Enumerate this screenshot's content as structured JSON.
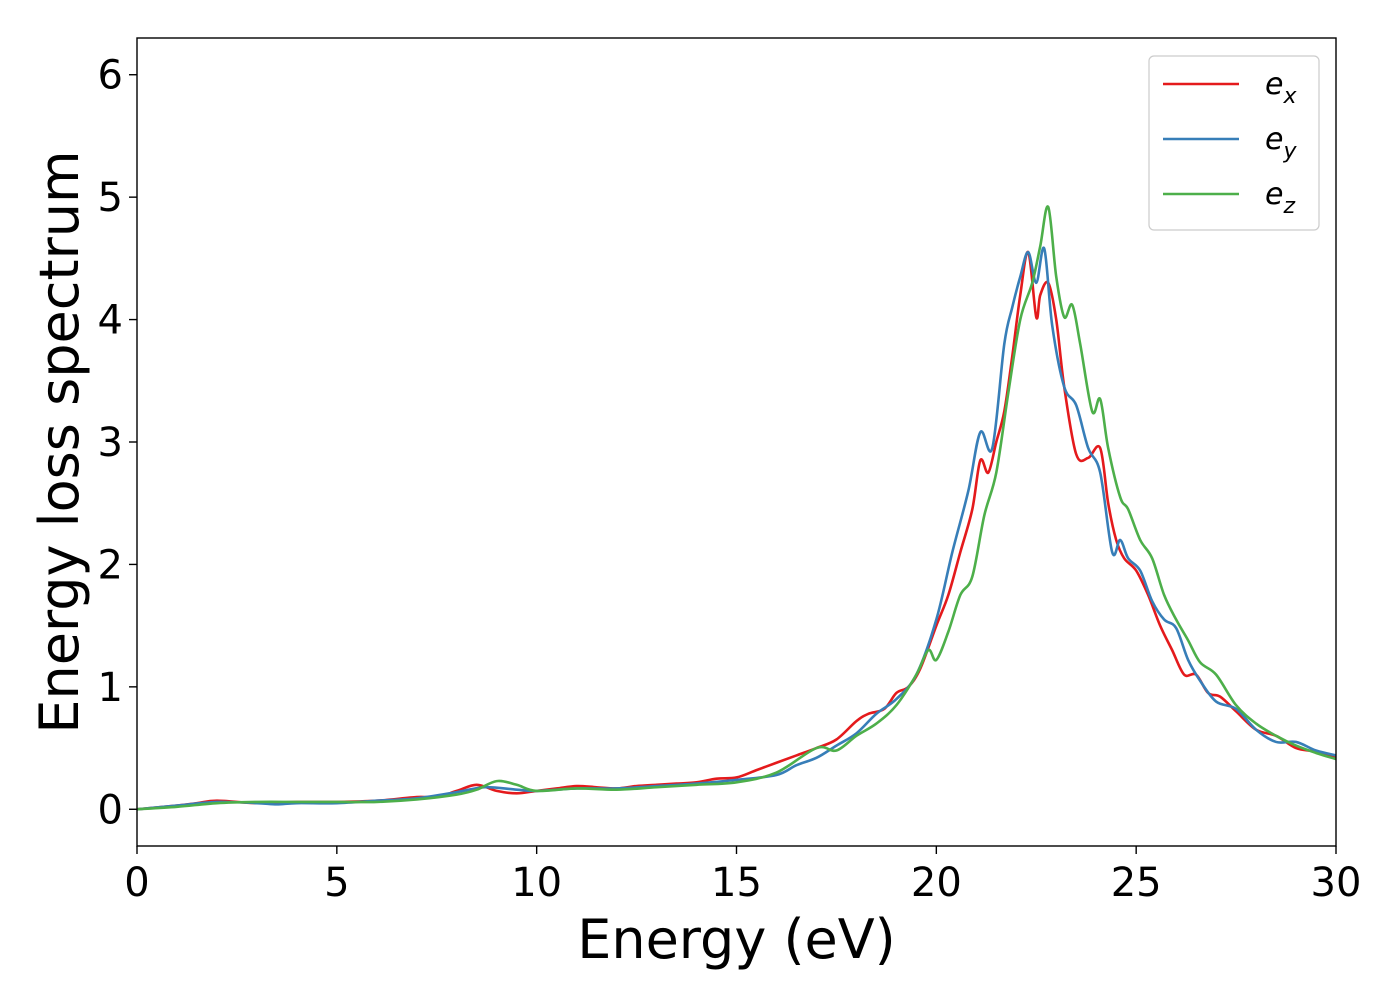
{
  "chart_data": {
    "type": "line",
    "title": "",
    "xlabel": "Energy (eV)",
    "ylabel": "Energy loss spectrum",
    "xlim": [
      0,
      30
    ],
    "ylim": [
      -0.3,
      6.3
    ],
    "xticks": [
      0,
      5,
      10,
      15,
      20,
      25,
      30
    ],
    "xtick_labels": [
      "0",
      "5",
      "10",
      "15",
      "20",
      "25",
      "30"
    ],
    "yticks": [
      0,
      1,
      2,
      3,
      4,
      5,
      6
    ],
    "ytick_labels": [
      "0",
      "1",
      "2",
      "3",
      "4",
      "5",
      "6"
    ],
    "grid": false,
    "legend_position": "top-right",
    "series": [
      {
        "name": "e_x",
        "legend_base": "e",
        "legend_sub": "x",
        "color": "#e41a1c",
        "x": [
          0,
          1,
          1.5,
          2,
          3,
          4,
          5,
          6,
          7,
          7.5,
          8,
          8.5,
          9,
          9.5,
          10,
          10.5,
          11,
          11.5,
          12,
          12.5,
          13,
          13.5,
          14,
          14.5,
          15,
          15.5,
          16,
          16.5,
          17,
          17.5,
          18,
          18.3,
          18.7,
          19,
          19.3,
          19.6,
          20,
          20.3,
          20.6,
          20.9,
          21.1,
          21.3,
          21.5,
          21.7,
          21.9,
          22.1,
          22.3,
          22.5,
          22.6,
          22.8,
          23,
          23.2,
          23.5,
          23.8,
          24.1,
          24.3,
          24.5,
          24.7,
          25,
          25.3,
          25.6,
          25.9,
          26.2,
          26.5,
          26.8,
          27.1,
          27.5,
          28,
          28.5,
          29,
          29.5,
          30
        ],
        "y": [
          0,
          0.03,
          0.05,
          0.07,
          0.05,
          0.06,
          0.06,
          0.07,
          0.1,
          0.1,
          0.15,
          0.2,
          0.15,
          0.13,
          0.15,
          0.17,
          0.19,
          0.18,
          0.17,
          0.19,
          0.2,
          0.21,
          0.22,
          0.25,
          0.26,
          0.32,
          0.38,
          0.44,
          0.5,
          0.57,
          0.72,
          0.78,
          0.82,
          0.95,
          1.0,
          1.15,
          1.5,
          1.75,
          2.1,
          2.45,
          2.85,
          2.75,
          3.0,
          3.25,
          3.7,
          4.2,
          4.55,
          4.02,
          4.2,
          4.3,
          4.0,
          3.45,
          2.9,
          2.87,
          2.95,
          2.5,
          2.2,
          2.05,
          1.95,
          1.75,
          1.5,
          1.3,
          1.1,
          1.1,
          0.95,
          0.92,
          0.8,
          0.65,
          0.6,
          0.5,
          0.47,
          0.42
        ]
      },
      {
        "name": "e_y",
        "legend_base": "e",
        "legend_sub": "y",
        "color": "#377eb8",
        "x": [
          0,
          1,
          2,
          3,
          3.5,
          4,
          5,
          6,
          7,
          8,
          8.7,
          9.5,
          10,
          11,
          12,
          13,
          14,
          15,
          16,
          16.5,
          17,
          17.5,
          18,
          18.5,
          19,
          19.5,
          20,
          20.4,
          20.8,
          21.1,
          21.4,
          21.7,
          21.9,
          22.1,
          22.3,
          22.5,
          22.7,
          22.9,
          23.2,
          23.5,
          23.8,
          24.1,
          24.4,
          24.6,
          24.8,
          25.1,
          25.4,
          25.7,
          26,
          26.3,
          26.6,
          27,
          27.5,
          28,
          28.5,
          29,
          29.5,
          30
        ],
        "y": [
          0,
          0.03,
          0.06,
          0.05,
          0.04,
          0.05,
          0.05,
          0.07,
          0.09,
          0.14,
          0.18,
          0.16,
          0.15,
          0.17,
          0.17,
          0.19,
          0.21,
          0.24,
          0.28,
          0.36,
          0.42,
          0.52,
          0.62,
          0.78,
          0.9,
          1.1,
          1.55,
          2.1,
          2.6,
          3.08,
          2.95,
          3.8,
          4.1,
          4.35,
          4.55,
          4.3,
          4.58,
          3.95,
          3.45,
          3.3,
          2.95,
          2.75,
          2.1,
          2.2,
          2.05,
          1.95,
          1.7,
          1.55,
          1.48,
          1.22,
          1.05,
          0.88,
          0.82,
          0.65,
          0.55,
          0.55,
          0.48,
          0.44
        ]
      },
      {
        "name": "e_z",
        "legend_base": "e",
        "legend_sub": "z",
        "color": "#4daf4a",
        "x": [
          0,
          1,
          2,
          3,
          4,
          5,
          6,
          7,
          8,
          8.5,
          9,
          9.5,
          10,
          11,
          12,
          13,
          14,
          15,
          16,
          17,
          17.5,
          18,
          18.5,
          19,
          19.5,
          19.8,
          20,
          20.3,
          20.6,
          20.9,
          21.2,
          21.5,
          21.8,
          22.1,
          22.4,
          22.6,
          22.8,
          23,
          23.2,
          23.4,
          23.6,
          23.9,
          24.1,
          24.3,
          24.6,
          24.8,
          25.1,
          25.4,
          25.7,
          26,
          26.3,
          26.6,
          27,
          27.5,
          28,
          28.5,
          29,
          29.5,
          30
        ],
        "y": [
          0,
          0.02,
          0.05,
          0.06,
          0.06,
          0.06,
          0.06,
          0.08,
          0.12,
          0.16,
          0.23,
          0.2,
          0.15,
          0.17,
          0.16,
          0.18,
          0.2,
          0.22,
          0.3,
          0.5,
          0.48,
          0.6,
          0.7,
          0.85,
          1.1,
          1.3,
          1.22,
          1.45,
          1.75,
          1.9,
          2.4,
          2.75,
          3.4,
          4.0,
          4.3,
          4.6,
          4.92,
          4.35,
          4.02,
          4.12,
          3.8,
          3.25,
          3.35,
          2.95,
          2.55,
          2.45,
          2.2,
          2.05,
          1.75,
          1.55,
          1.38,
          1.2,
          1.1,
          0.85,
          0.7,
          0.6,
          0.52,
          0.46,
          0.41
        ]
      }
    ]
  }
}
